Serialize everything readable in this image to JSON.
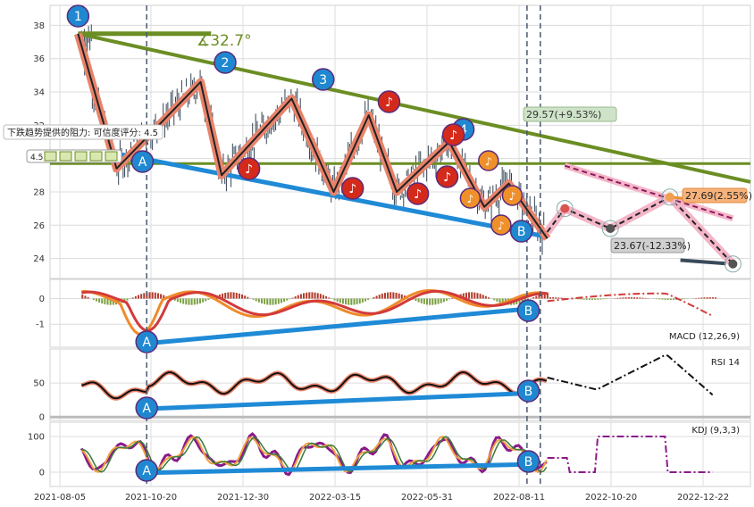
{
  "chart_data": {
    "type": "line",
    "x_ticks": [
      "2021-08-05",
      "2021-10-20",
      "2021-12-30",
      "2022-03-15",
      "2022-05-31",
      "2022-08-11",
      "2022-10-20",
      "2022-12-22"
    ],
    "price_panel": {
      "y_ticks": [
        24,
        26,
        28,
        30,
        32,
        34,
        36,
        38
      ],
      "ylim": [
        22.8,
        39.2
      ],
      "angle_label": "∡32.7°",
      "resistance_note": "下跌趋势提供的阻力: 可信度评分: 4.5",
      "score_box": "4.5",
      "upper_target": "29.57(+9.53%)",
      "mid_target": "27.69(2.55%)",
      "lower_target": "23.67(-12.33%)",
      "wave_labels": [
        "1",
        "2",
        "3",
        "4",
        "A",
        "B"
      ],
      "pivots": [
        {
          "label": "1",
          "x": 0.04,
          "y": 37.5
        },
        {
          "label": "A",
          "x": 0.095,
          "y": 29.4
        },
        {
          "label": "2",
          "x": 0.215,
          "y": 34.6
        },
        {
          "label": "note",
          "x": 0.245,
          "y": 29.0
        },
        {
          "label": "3",
          "x": 0.345,
          "y": 33.6
        },
        {
          "label": "note",
          "x": 0.405,
          "y": 28.0
        },
        {
          "label": "note",
          "x": 0.455,
          "y": 32.6
        },
        {
          "label": "note",
          "x": 0.495,
          "y": 28.0
        },
        {
          "label": "4",
          "x": 0.57,
          "y": 31.0
        },
        {
          "label": "note",
          "x": 0.62,
          "y": 27.1
        },
        {
          "label": "note",
          "x": 0.655,
          "y": 28.5
        },
        {
          "label": "B",
          "x": 0.71,
          "y": 25.2
        }
      ],
      "forecast": [
        {
          "x": 0.735,
          "y": 27.0
        },
        {
          "x": 0.8,
          "y": 25.8
        },
        {
          "x": 0.885,
          "y": 27.69
        },
        {
          "x": 0.975,
          "y": 23.67
        }
      ]
    },
    "macd_panel": {
      "label": "MACD (12,26,9)",
      "y_ticks": [
        -1,
        0
      ],
      "ylim": [
        -1.9,
        0.75
      ]
    },
    "rsi_panel": {
      "label": "RSI 14",
      "y_ticks": [
        0,
        50
      ],
      "ylim": [
        -5,
        100
      ]
    },
    "kdj_panel": {
      "label": "KDJ (9,3,3)",
      "y_ticks": [
        0,
        100
      ],
      "ylim": [
        -40,
        140
      ]
    },
    "colors": {
      "trend_green": "#6b8e23",
      "support_blue": "#1f8ad6",
      "wave_salmon": "#e8836b",
      "badge_blue": "#1f88d0",
      "badge_red": "#d42a1c",
      "badge_orange": "#f0902a",
      "forecast_pink": "#f4b5c8",
      "macd_orange": "#f08a2a",
      "macd_red": "#d23a3a",
      "kdj_purple": "#8a1a8a"
    }
  }
}
